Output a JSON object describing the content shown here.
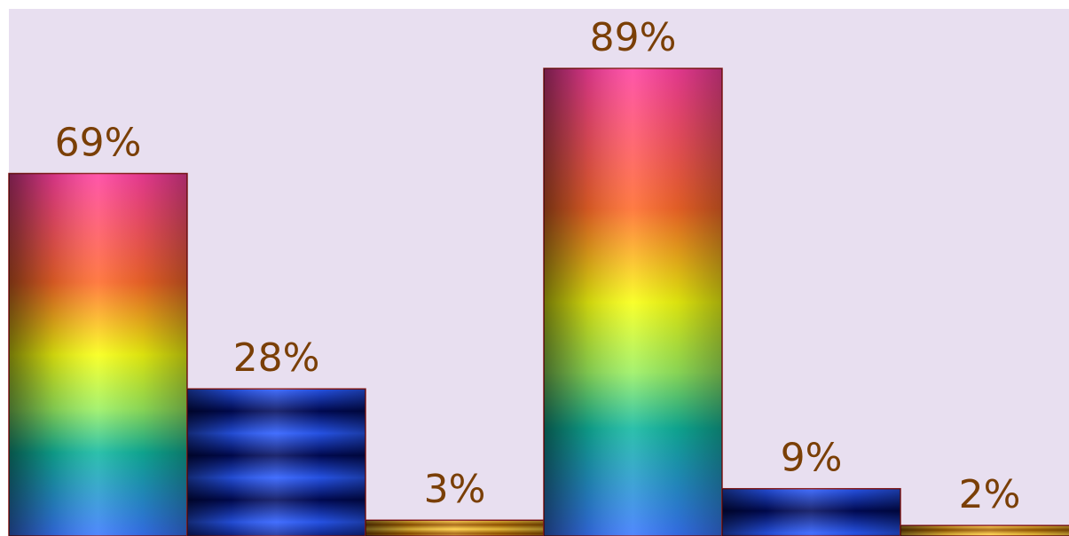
{
  "chart_data": {
    "type": "bar",
    "title": "",
    "xlabel": "",
    "ylabel": "",
    "ylim": [
      0,
      100
    ],
    "grid": false,
    "legend": "none",
    "groups": 2,
    "values": [
      69,
      28,
      3,
      89,
      9,
      2
    ],
    "labels": [
      "69%",
      "28%",
      "3%",
      "89%",
      "9%",
      "2%"
    ],
    "series_styles": [
      "rainbow-gradient",
      "blue-stripes",
      "gold-stripes"
    ]
  },
  "colors": {
    "plot_background": "#e8dff0",
    "label_text": "#7a3f06",
    "bar_outline": "#8b1a1a"
  }
}
